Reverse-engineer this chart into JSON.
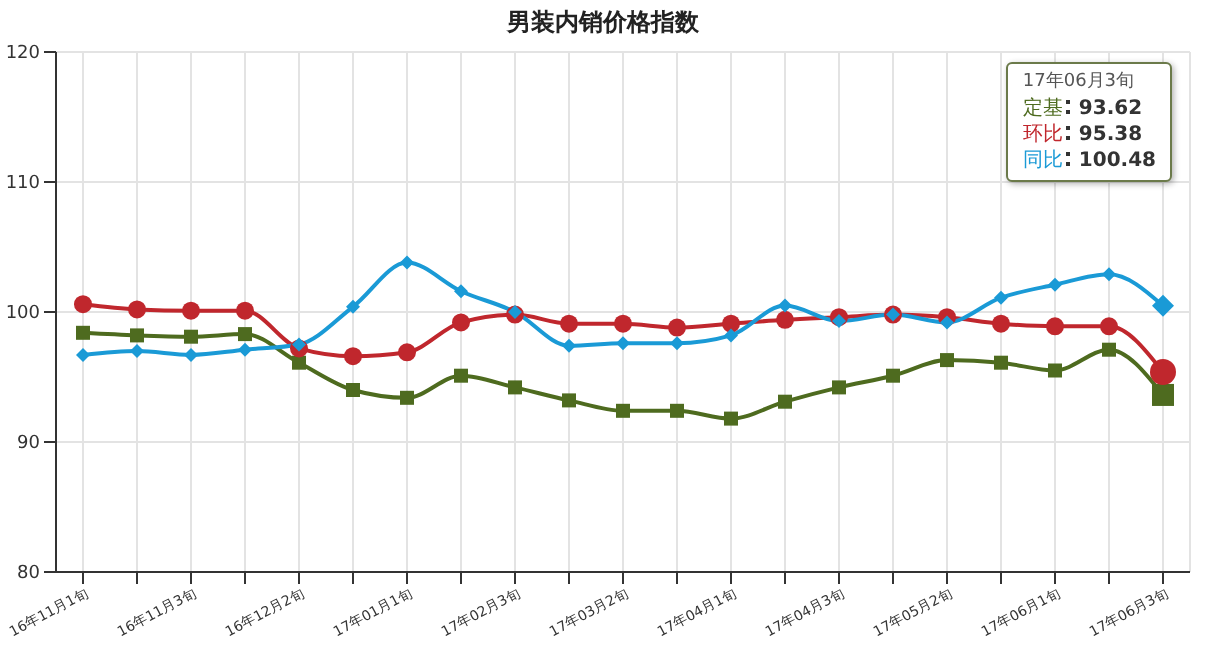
{
  "chart_data": {
    "type": "line",
    "title": "男装内销价格指数",
    "categories": [
      "16年11月1旬",
      null,
      "16年11月3旬",
      null,
      "16年12月2旬",
      null,
      "17年01月1旬",
      null,
      "17年02月3旬",
      null,
      "17年03月2旬",
      null,
      "17年04月1旬",
      null,
      "17年04月3旬",
      null,
      "17年05月2旬",
      null,
      "17年06月1旬",
      null,
      "17年06月3旬"
    ],
    "series": [
      {
        "name": "定基",
        "color": "#4e6b1f",
        "marker": "square",
        "values": [
          98.4,
          98.2,
          98.1,
          98.3,
          96.1,
          94.0,
          93.4,
          95.1,
          94.2,
          93.2,
          92.4,
          92.4,
          91.8,
          93.1,
          94.2,
          95.1,
          96.3,
          96.1,
          95.5,
          97.1,
          93.62
        ]
      },
      {
        "name": "环比",
        "color": "#c0272d",
        "marker": "circle",
        "values": [
          100.6,
          100.2,
          100.1,
          100.1,
          97.2,
          96.6,
          96.9,
          99.2,
          99.8,
          99.1,
          99.1,
          98.8,
          99.1,
          99.4,
          99.6,
          99.8,
          99.6,
          99.1,
          98.9,
          98.9,
          95.38
        ]
      },
      {
        "name": "同比",
        "color": "#1a9ad6",
        "marker": "diamond",
        "values": [
          96.7,
          97.0,
          96.7,
          97.1,
          97.5,
          100.4,
          103.8,
          101.6,
          100.0,
          97.4,
          97.6,
          97.6,
          98.2,
          100.5,
          99.3,
          99.8,
          99.2,
          101.1,
          102.1,
          102.9,
          100.48
        ]
      }
    ],
    "annotations": [
      "93.62",
      "95.38",
      "100.48"
    ],
    "ylim": [
      80,
      120
    ],
    "yticks": [
      80,
      90,
      100,
      110,
      120
    ],
    "grid": true,
    "legend": "top right",
    "line_style": "solid"
  }
}
